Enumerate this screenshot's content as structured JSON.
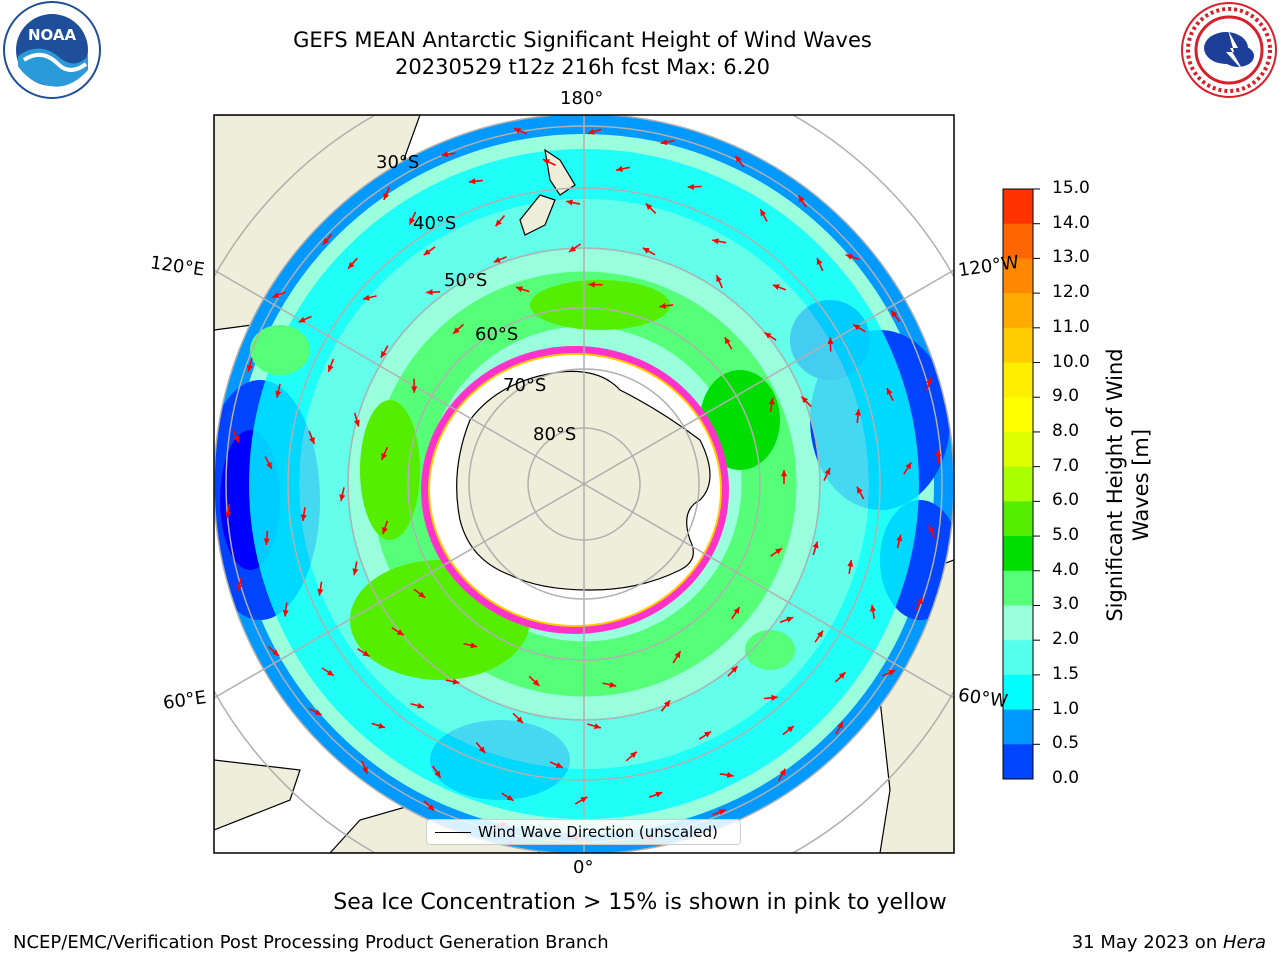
{
  "title": {
    "line1": "GEFS MEAN Antarctic Significant Height of Wind Waves",
    "line2": "20230529 t12z 216h fcst   Max: 6.20"
  },
  "logos": {
    "left": "noaa-logo",
    "left_text": "NOAA",
    "right": "national-weather-service-logo"
  },
  "map": {
    "projection": "south-polar-stereographic",
    "longitude_labels": [
      "180°",
      "120°E",
      "120°W",
      "60°E",
      "60°W",
      "0°"
    ],
    "latitude_labels": [
      "30°S",
      "40°S",
      "50°S",
      "60°S",
      "70°S",
      "80°S"
    ],
    "colors": {
      "land": "#efeedb",
      "ice_edge": "#ff33cc",
      "arrow": "#ff0000",
      "graticule": "#b0b0b0"
    }
  },
  "legend": {
    "entry": "Wind Wave Direction (unscaled)",
    "placement": "bottom-center"
  },
  "colorbar": {
    "label": "Significant Height of Wind Waves [m]",
    "ticks": [
      "15.0",
      "14.0",
      "13.0",
      "12.0",
      "11.0",
      "10.0",
      "9.0",
      "8.0",
      "7.0",
      "6.0",
      "5.0",
      "4.0",
      "3.0",
      "2.0",
      "1.5",
      "1.0",
      "0.5",
      "0.0"
    ],
    "colors": [
      "#ff0000",
      "#ff3300",
      "#ff6600",
      "#ff8800",
      "#ffaa00",
      "#ffcc00",
      "#ffee00",
      "#ffff00",
      "#ddff00",
      "#aaff00",
      "#55ee00",
      "#00dd00",
      "#55ff77",
      "#99ffdd",
      "#55ffee",
      "#00ffff",
      "#0099ff",
      "#0044ff",
      "#0000ff"
    ]
  },
  "caption": "Sea Ice Concentration > 15% is shown in pink to yellow",
  "footer": {
    "left": "NCEP/EMC/Verification Post Processing Product Generation Branch",
    "right_prefix": "31 May 2023 on ",
    "right_system": "Hera"
  }
}
